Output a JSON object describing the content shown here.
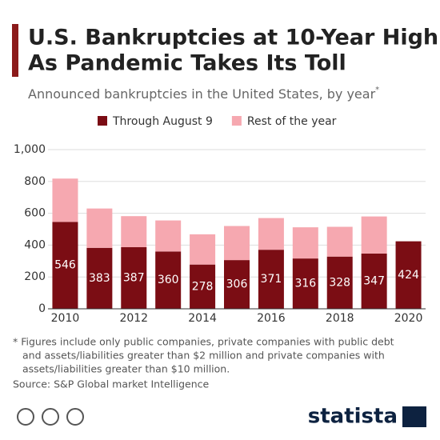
{
  "chart_data": {
    "type": "stacked_bar",
    "title": [
      "U.S. Bankruptcies at 10-Year High",
      "As Pandemic Takes Its Toll"
    ],
    "subtitle": "Announced bankruptcies in the United States, by year",
    "subtitle_mark": "*",
    "categories": [
      "2010",
      null,
      "2012",
      null,
      "2014",
      null,
      "2016",
      null,
      "2018",
      null,
      "2020"
    ],
    "series": [
      {
        "name": "Through August 9",
        "color": "#7b0d14",
        "values": [
          546,
          383,
          387,
          360,
          278,
          306,
          371,
          316,
          328,
          347,
          424
        ]
      },
      {
        "name": "Rest of the year",
        "color": "#f6a8b0",
        "values": [
          272,
          247,
          195,
          195,
          190,
          214,
          199,
          196,
          187,
          233,
          null
        ]
      }
    ],
    "ylim": [
      0,
      1000
    ],
    "yticks": [
      0,
      200,
      400,
      600,
      {
        "value": 800,
        "label": "800"
      },
      {
        "value": 1000,
        "label": "1,000"
      }
    ],
    "grid": true,
    "notes": [
      "* Figures include only public companies, private companies with public debt",
      "and assets/liabilities greater than $2 million and private companies with",
      "assets/liabilities greater than $10 million."
    ],
    "source": "Source: S&P Global market Intelligence",
    "brand": "statista"
  }
}
